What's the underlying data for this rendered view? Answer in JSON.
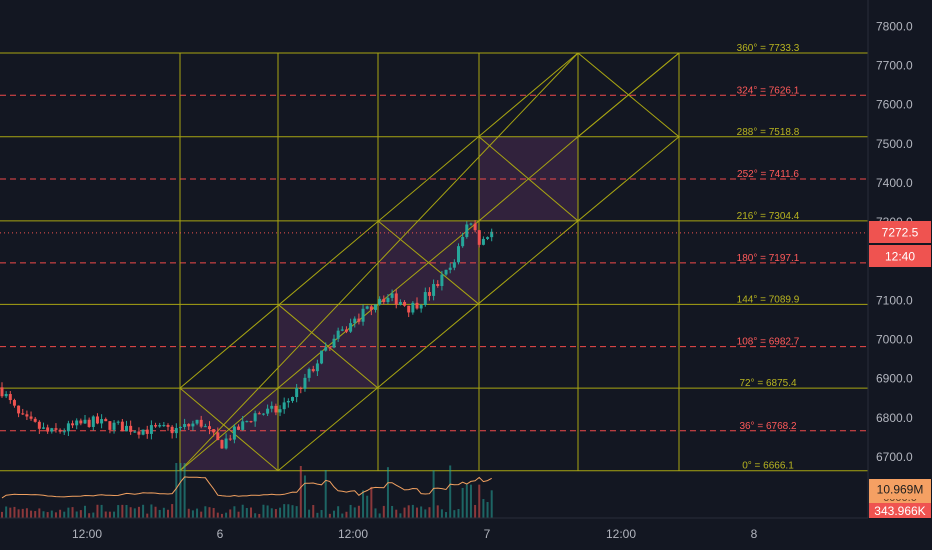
{
  "chart_data": {
    "type": "candlestick",
    "x_ticks": [
      "12:00",
      "6",
      "12:00",
      "7",
      "12:00",
      "8"
    ],
    "y_ticks": [
      6700,
      6800,
      6900,
      7000,
      7100,
      7200,
      7300,
      7400,
      7500,
      7600,
      7700,
      7800
    ],
    "ylim": [
      6620,
      7860
    ],
    "last_price": "7272.5",
    "countdown": "12:40",
    "volume_label": "10.969M",
    "indicator_label": "343.966K",
    "indicator_hidden_value": "6000.0",
    "gann_levels": [
      {
        "price": 6665,
        "label": "0° = 6666.1",
        "style": "solid"
      },
      {
        "price": 6767,
        "label": "36° = 6768.2",
        "style": "dashed"
      },
      {
        "price": 6876,
        "label": "72° = 6875.4",
        "style": "solid"
      },
      {
        "price": 6982,
        "label": "108° = 6982.7",
        "style": "dashed"
      },
      {
        "price": 7090,
        "label": "144° = 7089.9",
        "style": "solid"
      },
      {
        "price": 7196,
        "label": "180° = 7197.1",
        "style": "dashed"
      },
      {
        "price": 7303,
        "label": "216° = 7304.4",
        "style": "solid"
      },
      {
        "price": 7410,
        "label": "252° = 7411.6",
        "style": "dashed"
      },
      {
        "price": 7518,
        "label": "288° = 7518.8",
        "style": "solid"
      },
      {
        "price": 7624,
        "label": "324° = 7626.1",
        "style": "dashed"
      },
      {
        "price": 7732,
        "label": "360° = 7733.3",
        "style": "solid"
      }
    ],
    "colors": {
      "background": "#131722",
      "up": "#26a69a",
      "down": "#ef5350",
      "gann_line": "#a8a512",
      "gann_label": "#b8b420",
      "dashed_level": "#f04a4a",
      "price_line": "#ef5350",
      "ma_line": "#f0a060",
      "box_fill": "#4a2c52"
    }
  }
}
